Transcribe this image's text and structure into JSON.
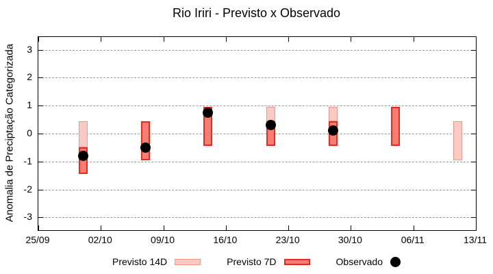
{
  "chart_data": {
    "type": "bar",
    "title": "Rio Iriri - Previsto x Observado",
    "ylabel": "Anomalia de Preciptação Categorizada",
    "ylim": [
      -3.46,
      3.46
    ],
    "yticks": [
      3,
      2,
      1,
      0,
      -1,
      -2,
      -3
    ],
    "grid": true,
    "legend_position": "bottom",
    "x_axis": {
      "total_days": 49,
      "ticks": [
        {
          "label": "25/09",
          "day": 0
        },
        {
          "label": "02/10",
          "day": 7
        },
        {
          "label": "09/10",
          "day": 14
        },
        {
          "label": "16/10",
          "day": 21
        },
        {
          "label": "23/10",
          "day": 28
        },
        {
          "label": "30/10",
          "day": 35
        },
        {
          "label": "06/11",
          "day": 42
        },
        {
          "label": "13/11",
          "day": 49
        }
      ]
    },
    "points": [
      {
        "date": "30/09",
        "day": 5,
        "previsto14": [
          -0.5,
          0.45
        ],
        "previsto7": [
          -1.45,
          -0.5
        ],
        "observado": -0.8
      },
      {
        "date": "07/10",
        "day": 12,
        "previsto14": null,
        "previsto7": [
          -0.95,
          0.45
        ],
        "observado": -0.5
      },
      {
        "date": "14/10",
        "day": 19,
        "previsto14": null,
        "previsto7": [
          -0.45,
          0.95
        ],
        "observado": 0.75
      },
      {
        "date": "21/10",
        "day": 26,
        "previsto14": [
          0.45,
          0.95
        ],
        "previsto7": [
          -0.45,
          0.45
        ],
        "observado": 0.3
      },
      {
        "date": "28/10",
        "day": 33,
        "previsto14": [
          0.45,
          0.95
        ],
        "previsto7": [
          -0.45,
          0.45
        ],
        "observado": 0.1
      },
      {
        "date": "04/11",
        "day": 40,
        "previsto14": null,
        "previsto7": [
          -0.45,
          0.95
        ],
        "observado": null
      },
      {
        "date": "11/11",
        "day": 47,
        "previsto14": [
          -0.95,
          0.45
        ],
        "previsto7": null,
        "observado": null
      }
    ],
    "legend": [
      {
        "label": "Previsto 14D",
        "swatch": "p14"
      },
      {
        "label": "Previsto 7D",
        "swatch": "p7"
      },
      {
        "label": "Observado",
        "swatch": "dot"
      }
    ],
    "colors": {
      "p14_fill": "#f8cac3",
      "p14_border": "#f0968b",
      "p7_fill": "#f67d73",
      "p7_border": "#e8291c",
      "observed": "#000000",
      "grid": "#999999",
      "axis": "#000000",
      "background": "#ffffff"
    }
  }
}
